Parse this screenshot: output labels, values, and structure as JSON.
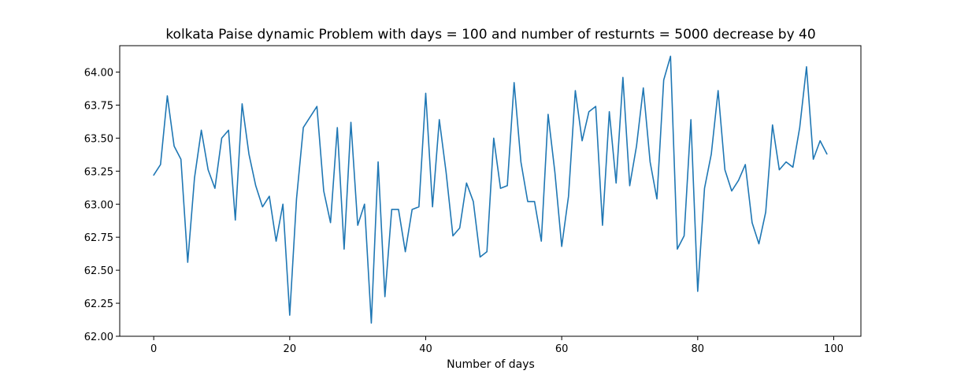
{
  "chart_data": {
    "type": "line",
    "title": "kolkata Paise dynamic Problem with days = 100 and number of resturnts = 5000 decrease by 40",
    "xlabel": "Number of days",
    "ylabel": "",
    "xlim": [
      -5,
      104
    ],
    "ylim": [
      62.0,
      64.2
    ],
    "xticks": [
      0,
      20,
      40,
      60,
      80,
      100
    ],
    "xtick_labels": [
      "0",
      "20",
      "40",
      "60",
      "80",
      "100"
    ],
    "yticks": [
      62.0,
      62.25,
      62.5,
      62.75,
      63.0,
      63.25,
      63.5,
      63.75,
      64.0
    ],
    "ytick_labels": [
      "62.00",
      "62.25",
      "62.50",
      "62.75",
      "63.00",
      "63.25",
      "63.50",
      "63.75",
      "64.00"
    ],
    "grid": false,
    "series": [
      {
        "color": "#1f77b4",
        "x": [
          0,
          1,
          2,
          3,
          4,
          5,
          6,
          7,
          8,
          9,
          10,
          11,
          12,
          13,
          14,
          15,
          16,
          17,
          18,
          19,
          20,
          21,
          22,
          23,
          24,
          25,
          26,
          27,
          28,
          29,
          30,
          31,
          32,
          33,
          34,
          35,
          36,
          37,
          38,
          39,
          40,
          41,
          42,
          43,
          44,
          45,
          46,
          47,
          48,
          49,
          50,
          51,
          52,
          53,
          54,
          55,
          56,
          57,
          58,
          59,
          60,
          61,
          62,
          63,
          64,
          65,
          66,
          67,
          68,
          69,
          70,
          71,
          72,
          73,
          74,
          75,
          76,
          77,
          78,
          79,
          80,
          81,
          82,
          83,
          84,
          85,
          86,
          87,
          88,
          89,
          90,
          91,
          92,
          93,
          94,
          95,
          96,
          97,
          98,
          99
        ],
        "y": [
          63.22,
          63.3,
          63.82,
          63.44,
          63.34,
          62.56,
          63.2,
          63.56,
          63.26,
          63.12,
          63.5,
          63.56,
          62.88,
          63.76,
          63.38,
          63.14,
          62.98,
          63.06,
          62.72,
          63.0,
          62.16,
          63.04,
          63.58,
          63.66,
          63.74,
          63.1,
          62.86,
          63.58,
          62.66,
          63.62,
          62.84,
          63.0,
          62.1,
          63.32,
          62.3,
          62.96,
          62.96,
          62.64,
          62.96,
          62.98,
          63.84,
          62.98,
          63.64,
          63.24,
          62.76,
          62.82,
          63.16,
          63.02,
          62.6,
          62.64,
          63.5,
          63.12,
          63.14,
          63.92,
          63.32,
          63.02,
          63.02,
          62.72,
          63.68,
          63.24,
          62.68,
          63.06,
          63.86,
          63.48,
          63.7,
          63.74,
          62.84,
          63.7,
          63.16,
          63.96,
          63.14,
          63.44,
          63.88,
          63.32,
          63.04,
          63.94,
          64.12,
          62.66,
          62.76,
          63.64,
          62.34,
          63.12,
          63.38,
          63.86,
          63.26,
          63.1,
          63.18,
          63.3,
          62.86,
          62.7,
          62.94,
          63.6,
          63.26,
          63.32,
          63.28,
          63.58,
          64.04,
          63.34,
          63.48,
          63.38
        ]
      }
    ]
  }
}
